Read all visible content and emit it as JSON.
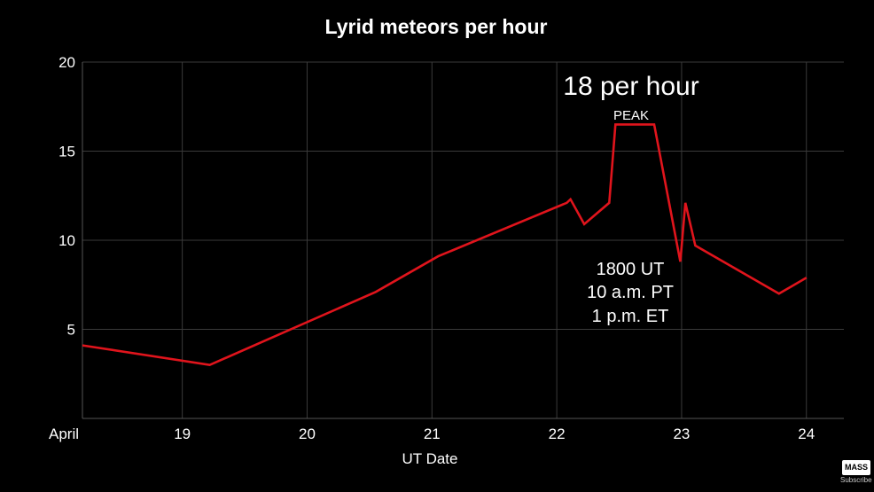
{
  "chart_data": {
    "type": "line",
    "title": "Lyrid meteors per hour",
    "xlabel": "UT Date",
    "ylabel": "",
    "xlim": [
      18.2,
      24.3
    ],
    "ylim": [
      0,
      20
    ],
    "y_ticks": [
      5,
      10,
      15,
      20
    ],
    "x_ticks": [
      {
        "value": 19,
        "label": "19"
      },
      {
        "value": 20,
        "label": "20"
      },
      {
        "value": 21,
        "label": "21"
      },
      {
        "value": 22,
        "label": "22"
      },
      {
        "value": 23,
        "label": "23"
      },
      {
        "value": 24,
        "label": "24"
      }
    ],
    "x_axis_start_label": "April",
    "grid": true,
    "series": [
      {
        "color": "#e0141c",
        "x": [
          18.2,
          19.22,
          20.55,
          21.05,
          22.08,
          22.11,
          22.22,
          22.42,
          22.47,
          22.78,
          22.99,
          23.03,
          23.11,
          23.78,
          24.0
        ],
        "y": [
          4.1,
          3.0,
          7.1,
          9.1,
          12.1,
          12.3,
          10.9,
          12.1,
          16.5,
          16.5,
          8.8,
          12.1,
          9.7,
          7.0,
          7.9
        ]
      }
    ],
    "annotations": {
      "peak_rate": "18 per hour",
      "peak_label": "PEAK",
      "peak_times": [
        "1800 UT",
        "10 a.m. PT",
        "1 p.m. ET"
      ]
    }
  },
  "overlay": {
    "logo_text": "MASS",
    "subscribe_text": "Subscribe"
  }
}
